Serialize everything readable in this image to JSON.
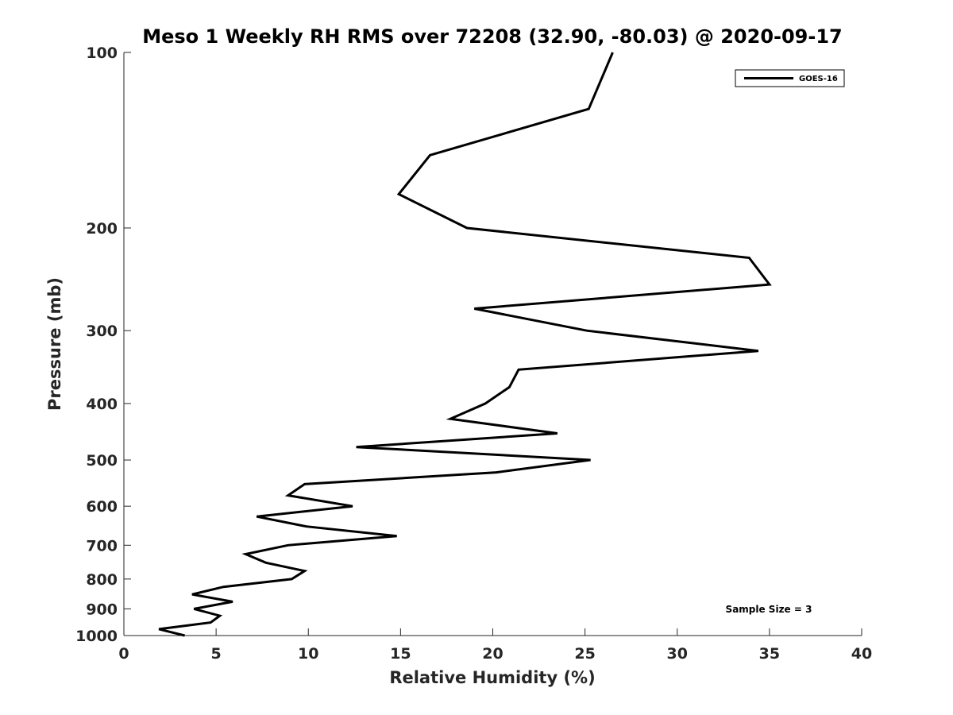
{
  "chart_data": {
    "type": "line",
    "title": "Meso 1 Weekly RH RMS over 72208 (32.90, -80.03) @ 2020-09-17",
    "xlabel": "Relative Humidity (%)",
    "ylabel": "Pressure (mb)",
    "xlim": [
      0,
      40
    ],
    "ylim": [
      100,
      1000
    ],
    "y_scale": "log",
    "y_reversed": true,
    "xticks": [
      0,
      5,
      10,
      15,
      20,
      25,
      30,
      35,
      40
    ],
    "yticks": [
      100,
      200,
      300,
      400,
      500,
      600,
      700,
      800,
      900,
      1000
    ],
    "grid": false,
    "legend_position": "top-right",
    "annotation": "Sample Size = 3",
    "series": [
      {
        "name": "GOES-16",
        "color": "#000000",
        "points": [
          {
            "x": 3.3,
            "y": 1000
          },
          {
            "x": 1.9,
            "y": 975
          },
          {
            "x": 4.7,
            "y": 950
          },
          {
            "x": 5.2,
            "y": 925
          },
          {
            "x": 3.8,
            "y": 900
          },
          {
            "x": 5.9,
            "y": 875
          },
          {
            "x": 3.7,
            "y": 850
          },
          {
            "x": 5.4,
            "y": 825
          },
          {
            "x": 9.1,
            "y": 800
          },
          {
            "x": 9.8,
            "y": 775
          },
          {
            "x": 7.7,
            "y": 750
          },
          {
            "x": 6.6,
            "y": 725
          },
          {
            "x": 8.9,
            "y": 700
          },
          {
            "x": 14.8,
            "y": 675
          },
          {
            "x": 9.9,
            "y": 650
          },
          {
            "x": 7.2,
            "y": 625
          },
          {
            "x": 12.4,
            "y": 600
          },
          {
            "x": 8.9,
            "y": 575
          },
          {
            "x": 9.8,
            "y": 550
          },
          {
            "x": 20.2,
            "y": 525
          },
          {
            "x": 25.3,
            "y": 500
          },
          {
            "x": 12.6,
            "y": 475
          },
          {
            "x": 23.5,
            "y": 450
          },
          {
            "x": 17.7,
            "y": 425
          },
          {
            "x": 19.6,
            "y": 400
          },
          {
            "x": 20.9,
            "y": 375
          },
          {
            "x": 21.4,
            "y": 350
          },
          {
            "x": 34.4,
            "y": 325
          },
          {
            "x": 25.1,
            "y": 300
          },
          {
            "x": 19.0,
            "y": 275
          },
          {
            "x": 35.0,
            "y": 250
          },
          {
            "x": 33.9,
            "y": 225
          },
          {
            "x": 18.6,
            "y": 200
          },
          {
            "x": 14.9,
            "y": 175
          },
          {
            "x": 16.6,
            "y": 150
          },
          {
            "x": 25.2,
            "y": 125
          },
          {
            "x": 26.5,
            "y": 100
          }
        ]
      }
    ]
  }
}
